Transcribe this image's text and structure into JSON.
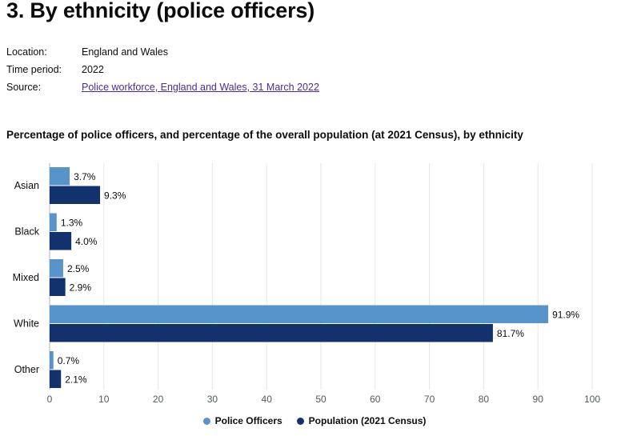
{
  "header": {
    "title": "3. By ethnicity (police officers)"
  },
  "meta": {
    "location_label": "Location:",
    "location_value": "England and Wales",
    "time_label": "Time period:",
    "time_value": "2022",
    "source_label": "Source:",
    "source_value": "Police workforce, England and Wales, 31 March 2022"
  },
  "chart_data": {
    "type": "bar",
    "orientation": "horizontal",
    "title": "Percentage of police officers, and percentage of the overall population (at 2021 Census), by ethnicity",
    "categories": [
      "Asian",
      "Black",
      "Mixed",
      "White",
      "Other"
    ],
    "series": [
      {
        "name": "Police Officers",
        "color": "#5694ca",
        "values": [
          3.7,
          1.3,
          2.5,
          91.9,
          0.7
        ],
        "labels": [
          "3.7%",
          "1.3%",
          "2.5%",
          "91.9%",
          "0.7%"
        ]
      },
      {
        "name": "Population (2021 Census)",
        "color": "#12326e",
        "values": [
          9.3,
          4.0,
          2.9,
          81.7,
          2.1
        ],
        "labels": [
          "9.3%",
          "4.0%",
          "2.9%",
          "81.7%",
          "2.1%"
        ]
      }
    ],
    "xlim": [
      0,
      100
    ],
    "xticks": [
      0,
      10,
      20,
      30,
      40,
      50,
      60,
      70,
      80,
      90,
      100
    ],
    "grid": true,
    "legend_position": "bottom-center"
  }
}
